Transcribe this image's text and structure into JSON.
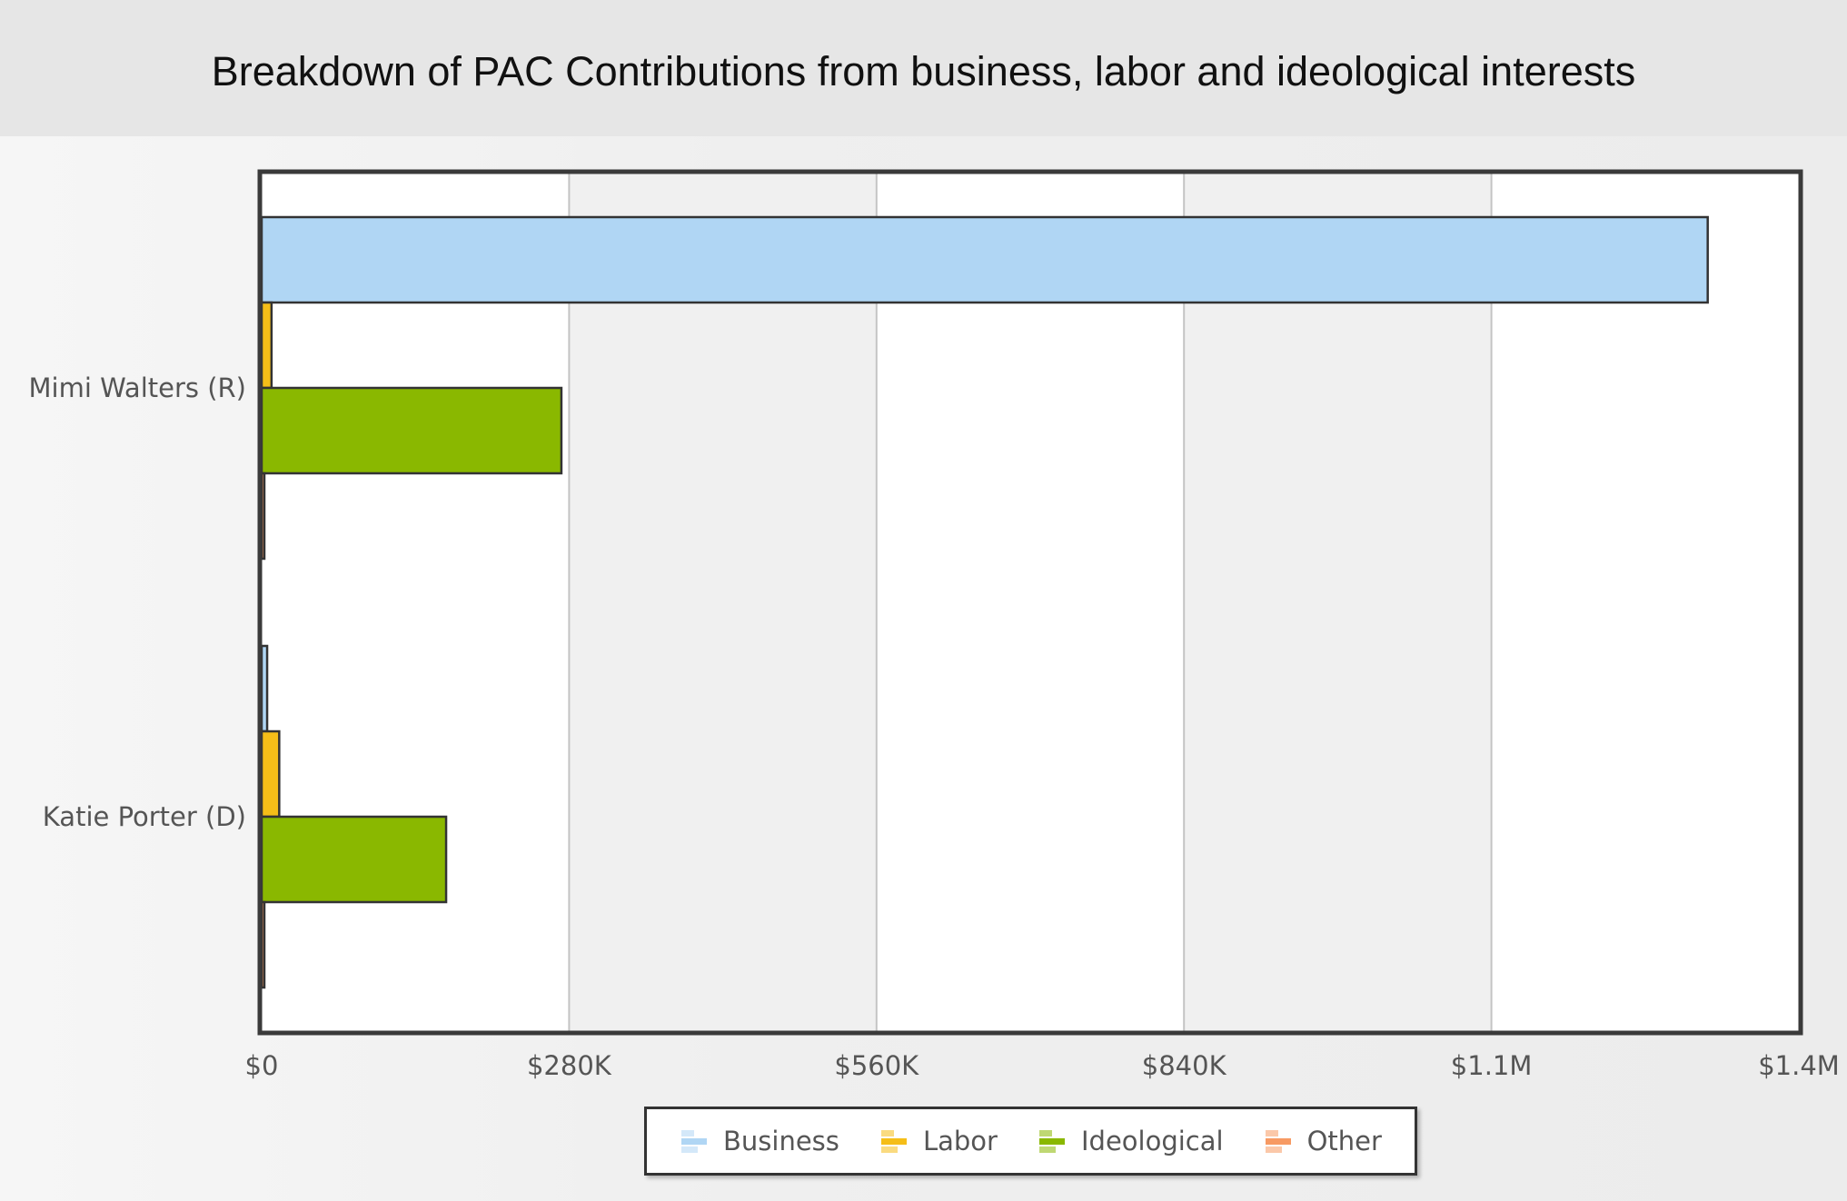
{
  "chart_data": {
    "type": "bar",
    "orientation": "horizontal",
    "title": "Breakdown of PAC Contributions from business, labor and ideological interests",
    "categories": [
      "Mimi Walters (R)",
      "Katie Porter (D)"
    ],
    "series": [
      {
        "name": "Business",
        "color": "#b0d6f4",
        "values": [
          1317000,
          5000
        ]
      },
      {
        "name": "Labor",
        "color": "#f5be18",
        "values": [
          9000,
          16000
        ]
      },
      {
        "name": "Ideological",
        "color": "#8ab800",
        "values": [
          273000,
          168000
        ]
      },
      {
        "name": "Other",
        "color": "#f79a63",
        "values": [
          1000,
          1000
        ]
      }
    ],
    "xlim": [
      0,
      1400000
    ],
    "xticks": [
      0,
      280000,
      560000,
      840000,
      1120000,
      1400000
    ],
    "xtick_labels": [
      "$0",
      "$280K",
      "$560K",
      "$840K",
      "$1.1M",
      "$1.4M"
    ],
    "grid": true,
    "legend_position": "bottom-center"
  }
}
